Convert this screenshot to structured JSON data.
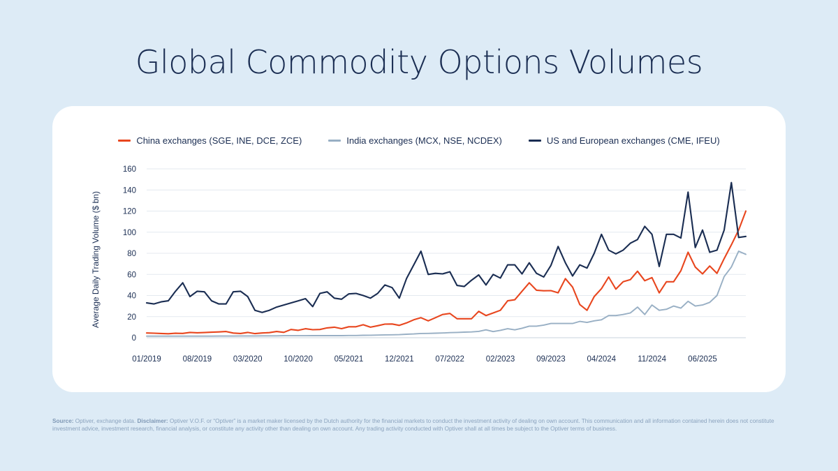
{
  "page": {
    "title": "Global Commodity Options Volumes"
  },
  "footnote": {
    "source_label": "Source:",
    "source_text": " Optiver, exchange data. ",
    "disclaimer_label": "Disclaimer:",
    "disclaimer_text": " Optiver V.O.F. or “Optiver” is a market maker licensed by the Dutch authority for the financial markets to conduct the investment activity of dealing on own account. This communication and all information contained herein does not constitute investment advice, investment research, financial analysis, or constitute any activity other than dealing on own account. Any trading activity conducted with Optiver shall at all times be subject to the Optiver terms of business."
  },
  "colors": {
    "china": "#e8461e",
    "india": "#98afc4",
    "us_eu": "#1a2d52",
    "grid": "#e4e9ef",
    "axis_text": "#1a2d52"
  },
  "chart_data": {
    "type": "line",
    "title": "Global Commodity Options Volumes",
    "xlabel": "",
    "ylabel": "Average Daily Trading Volume ($ bn)",
    "ylim": [
      0,
      160
    ],
    "yticks": [
      0,
      20,
      40,
      60,
      80,
      100,
      120,
      140,
      160
    ],
    "ytick_labels": [
      "0",
      "20",
      "40",
      "60",
      "80",
      "100",
      "120",
      "140",
      "160"
    ],
    "x_range": [
      "01/2019",
      "12/2025"
    ],
    "xticks": [
      {
        "index": 0,
        "label": "01/2019"
      },
      {
        "index": 7,
        "label": "08/2019"
      },
      {
        "index": 14,
        "label": "03/2020"
      },
      {
        "index": 21,
        "label": "10/2020"
      },
      {
        "index": 28,
        "label": "05/2021"
      },
      {
        "index": 35,
        "label": "12/2021"
      },
      {
        "index": 42,
        "label": "07/2022"
      },
      {
        "index": 49,
        "label": "02/2023"
      },
      {
        "index": 56,
        "label": "09/2023"
      },
      {
        "index": 63,
        "label": "04/2024"
      },
      {
        "index": 70,
        "label": "11/2024"
      },
      {
        "index": 77,
        "label": "06/2025"
      }
    ],
    "legend_position": "top-center",
    "grid": true,
    "series": [
      {
        "name": "China exchanges (SGE, INE, DCE, ZCE)",
        "key": "china",
        "values": [
          4.5,
          4.3,
          4,
          3.8,
          4.2,
          4.1,
          5,
          4.7,
          4.9,
          5.2,
          5.5,
          5.9,
          4.4,
          4,
          5,
          3.9,
          4.5,
          4.8,
          5.9,
          5.1,
          7.8,
          7,
          8.5,
          7.6,
          7.8,
          9.3,
          10,
          8.6,
          10.4,
          10.4,
          12.3,
          10,
          11.4,
          12.9,
          13,
          11.7,
          14,
          17,
          19,
          16,
          19,
          22,
          23,
          18,
          18,
          18,
          25,
          21,
          23.5,
          26,
          35,
          36,
          44,
          52,
          45,
          44.5,
          44.6,
          42.6,
          56,
          48,
          31.5,
          26,
          39,
          46.5,
          57.5,
          46,
          53,
          55,
          63,
          54,
          57,
          42.5,
          53,
          53,
          63.5,
          81,
          67,
          60.5,
          68,
          61,
          75,
          88,
          102,
          120
        ]
      },
      {
        "name": "India exchanges (MCX, NSE, NCDEX)",
        "key": "india",
        "values": [
          1.5,
          1.5,
          1.5,
          1.5,
          1.5,
          1.5,
          1.5,
          1.5,
          1.5,
          1.5,
          1.6,
          1.6,
          1.6,
          1.7,
          1.7,
          1.7,
          1.8,
          1.8,
          1.8,
          1.9,
          1.9,
          1.9,
          1.9,
          2,
          2,
          2,
          2,
          2,
          2.1,
          2.1,
          2.3,
          2.4,
          2.5,
          2.7,
          2.8,
          2.9,
          3.3,
          3.6,
          4,
          4.1,
          4.3,
          4.5,
          4.8,
          5,
          5.3,
          5.5,
          6,
          7.5,
          5.8,
          7,
          8.5,
          7.5,
          9,
          11,
          11,
          12,
          13.5,
          13.5,
          13.5,
          13.5,
          15.5,
          14.5,
          16,
          17,
          21,
          21,
          22,
          23.5,
          29,
          22,
          31,
          26,
          27,
          30,
          28,
          34.5,
          30,
          31,
          33.5,
          40,
          58,
          67,
          82,
          79
        ]
      },
      {
        "name": "US and European exchanges (CME, IFEU)",
        "key": "us_eu",
        "values": [
          33,
          32,
          34,
          35,
          44,
          52,
          39,
          44,
          43.5,
          35,
          32,
          32,
          43.5,
          44,
          39,
          26,
          24,
          26,
          29,
          31,
          33,
          35,
          37,
          29.5,
          42,
          43.5,
          37.5,
          36.5,
          41.5,
          42,
          40,
          37.5,
          42,
          50,
          47.5,
          37.5,
          56,
          69,
          82,
          60,
          61,
          60.5,
          62.5,
          49.5,
          48.5,
          54.5,
          59.5,
          50,
          60,
          56.5,
          69,
          69,
          60.5,
          71,
          61,
          57.5,
          68.5,
          86.5,
          71,
          58.5,
          69,
          66,
          80,
          98,
          83,
          79.5,
          83,
          89.5,
          93,
          105.5,
          98,
          67.5,
          98,
          98,
          94.5,
          138,
          85.5,
          102,
          81,
          83,
          102,
          147,
          95,
          96
        ]
      }
    ]
  }
}
